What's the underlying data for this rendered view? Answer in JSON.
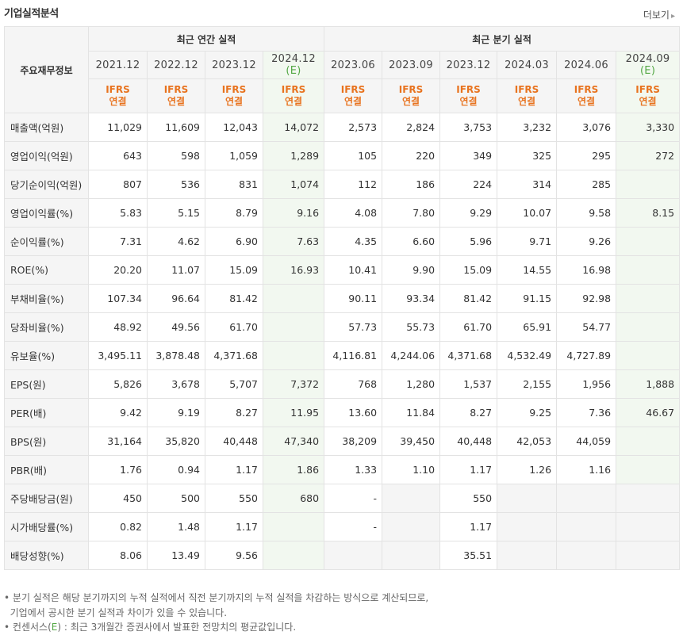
{
  "title": "기업실적분석",
  "more_label": "더보기",
  "more_arrow": "▸",
  "header": {
    "label_col": "주요재무정보",
    "annual_group": "최근 연간 실적",
    "quarter_group": "최근 분기 실적",
    "periods": [
      {
        "date": "2021.12",
        "est": ""
      },
      {
        "date": "2022.12",
        "est": ""
      },
      {
        "date": "2023.12",
        "est": ""
      },
      {
        "date": "2024.12",
        "est": "(E)"
      },
      {
        "date": "2023.06",
        "est": ""
      },
      {
        "date": "2023.09",
        "est": ""
      },
      {
        "date": "2023.12",
        "est": ""
      },
      {
        "date": "2024.03",
        "est": ""
      },
      {
        "date": "2024.06",
        "est": ""
      },
      {
        "date": "2024.09",
        "est": "(E)"
      }
    ],
    "basis_line1": "IFRS",
    "basis_line2": "연결"
  },
  "rows": [
    {
      "label": "매출액(억원)",
      "values": [
        "11,029",
        "11,609",
        "12,043",
        "14,072",
        "2,573",
        "2,824",
        "3,753",
        "3,232",
        "3,076",
        "3,330"
      ]
    },
    {
      "label": "영업이익(억원)",
      "values": [
        "643",
        "598",
        "1,059",
        "1,289",
        "105",
        "220",
        "349",
        "325",
        "295",
        "272"
      ]
    },
    {
      "label": "당기순이익(억원)",
      "values": [
        "807",
        "536",
        "831",
        "1,074",
        "112",
        "186",
        "224",
        "314",
        "285",
        ""
      ]
    },
    {
      "label": "영업이익률(%)",
      "values": [
        "5.83",
        "5.15",
        "8.79",
        "9.16",
        "4.08",
        "7.80",
        "9.29",
        "10.07",
        "9.58",
        "8.15"
      ]
    },
    {
      "label": "순이익률(%)",
      "values": [
        "7.31",
        "4.62",
        "6.90",
        "7.63",
        "4.35",
        "6.60",
        "5.96",
        "9.71",
        "9.26",
        ""
      ]
    },
    {
      "label": "ROE(%)",
      "values": [
        "20.20",
        "11.07",
        "15.09",
        "16.93",
        "10.41",
        "9.90",
        "15.09",
        "14.55",
        "16.98",
        ""
      ]
    },
    {
      "label": "부채비율(%)",
      "values": [
        "107.34",
        "96.64",
        "81.42",
        "",
        "90.11",
        "93.34",
        "81.42",
        "91.15",
        "92.98",
        ""
      ]
    },
    {
      "label": "당좌비율(%)",
      "values": [
        "48.92",
        "49.56",
        "61.70",
        "",
        "57.73",
        "55.73",
        "61.70",
        "65.91",
        "54.77",
        ""
      ]
    },
    {
      "label": "유보율(%)",
      "values": [
        "3,495.11",
        "3,878.48",
        "4,371.68",
        "",
        "4,116.81",
        "4,244.06",
        "4,371.68",
        "4,532.49",
        "4,727.89",
        ""
      ]
    },
    {
      "label": "EPS(원)",
      "values": [
        "5,826",
        "3,678",
        "5,707",
        "7,372",
        "768",
        "1,280",
        "1,537",
        "2,155",
        "1,956",
        "1,888"
      ]
    },
    {
      "label": "PER(배)",
      "values": [
        "9.42",
        "9.19",
        "8.27",
        "11.95",
        "13.60",
        "11.84",
        "8.27",
        "9.25",
        "7.36",
        "46.67"
      ]
    },
    {
      "label": "BPS(원)",
      "values": [
        "31,164",
        "35,820",
        "40,448",
        "47,340",
        "38,209",
        "39,450",
        "40,448",
        "42,053",
        "44,059",
        ""
      ]
    },
    {
      "label": "PBR(배)",
      "values": [
        "1.76",
        "0.94",
        "1.17",
        "1.86",
        "1.33",
        "1.10",
        "1.17",
        "1.26",
        "1.16",
        ""
      ]
    },
    {
      "label": "주당배당금(원)",
      "values": [
        "450",
        "500",
        "550",
        "680",
        "-",
        "",
        "550",
        "",
        "",
        ""
      ]
    },
    {
      "label": "시가배당률(%)",
      "values": [
        "0.82",
        "1.48",
        "1.17",
        "",
        "-",
        "",
        "1.17",
        "",
        "",
        ""
      ]
    },
    {
      "label": "배당성향(%)",
      "values": [
        "8.06",
        "13.49",
        "9.56",
        "",
        "",
        "",
        "35.51",
        "",
        "",
        ""
      ]
    }
  ],
  "notes": {
    "line1": "분기 실적은 해당 분기까지의 누적 실적에서 직전 분기까지의 누적 실적을 차감하는 방식으로 계산되므로,",
    "line2": "기업에서 공시한 분기 실적과 차이가 있을 수 있습니다.",
    "line3_pre": "컨센서스(",
    "line3_e": "E",
    "line3_post": ") : 최근 3개월간 증권사에서 발표한 전망치의 평균값입니다."
  }
}
